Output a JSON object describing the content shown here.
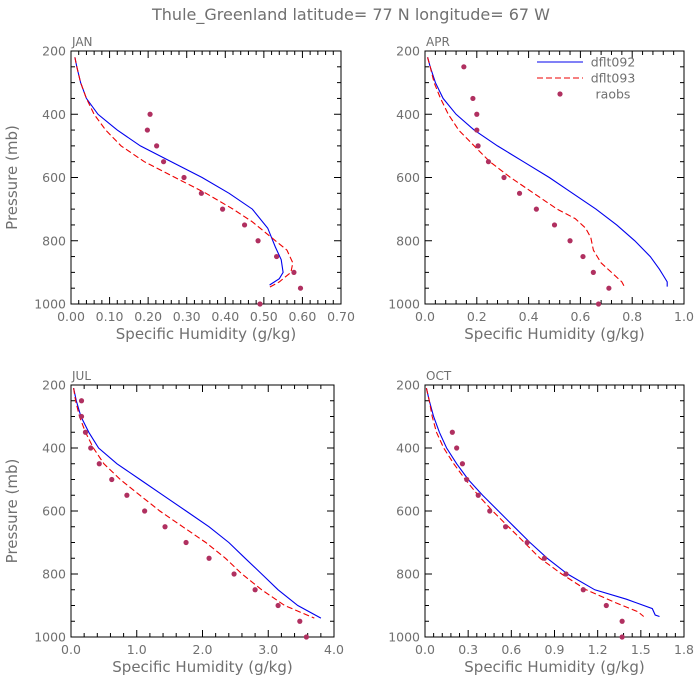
{
  "title": "Thule_Greenland  latitude= 77 N longitude= 67 W",
  "chart_data": [
    {
      "type": "line",
      "panel": "JAN",
      "xlabel": "Specific Humidity (g/kg)",
      "ylabel": "Pressure (mb)",
      "xlim": [
        0,
        0.7
      ],
      "ylim": [
        1000,
        200
      ],
      "xticks": [
        0.0,
        0.1,
        0.2,
        0.3,
        0.4,
        0.5,
        0.6,
        0.7
      ],
      "xtick_labels": [
        "0.00",
        "0.10",
        "0.20",
        "0.30",
        "0.40",
        "0.50",
        "0.60",
        "0.70"
      ],
      "yticks": [
        200,
        400,
        600,
        800,
        1000
      ],
      "ytick_labels": [
        "200",
        "400",
        "600",
        "800",
        "1000"
      ],
      "series": [
        {
          "name": "dflt092",
          "style": "solid",
          "color": "#0000ee",
          "points": [
            [
              0.01,
              220
            ],
            [
              0.015,
              250
            ],
            [
              0.025,
              300
            ],
            [
              0.04,
              350
            ],
            [
              0.07,
              400
            ],
            [
              0.12,
              450
            ],
            [
              0.18,
              500
            ],
            [
              0.26,
              550
            ],
            [
              0.34,
              600
            ],
            [
              0.41,
              650
            ],
            [
              0.47,
              700
            ],
            [
              0.51,
              760
            ],
            [
              0.53,
              820
            ],
            [
              0.545,
              860
            ],
            [
              0.55,
              900
            ],
            [
              0.54,
              920
            ],
            [
              0.515,
              940
            ]
          ]
        },
        {
          "name": "dflt093",
          "style": "dashed",
          "color": "#ee0000",
          "points": [
            [
              0.01,
              220
            ],
            [
              0.015,
              250
            ],
            [
              0.025,
              300
            ],
            [
              0.04,
              350
            ],
            [
              0.06,
              400
            ],
            [
              0.09,
              450
            ],
            [
              0.13,
              500
            ],
            [
              0.19,
              550
            ],
            [
              0.27,
              600
            ],
            [
              0.35,
              650
            ],
            [
              0.42,
              700
            ],
            [
              0.47,
              740
            ],
            [
              0.52,
              790
            ],
            [
              0.56,
              830
            ],
            [
              0.575,
              870
            ],
            [
              0.57,
              900
            ],
            [
              0.54,
              930
            ],
            [
              0.51,
              950
            ]
          ]
        },
        {
          "name": "raobs",
          "style": "markers",
          "color": "#b03060",
          "points": [
            [
              0.205,
              400
            ],
            [
              0.198,
              450
            ],
            [
              0.222,
              500
            ],
            [
              0.24,
              550
            ],
            [
              0.293,
              600
            ],
            [
              0.338,
              650
            ],
            [
              0.393,
              700
            ],
            [
              0.45,
              750
            ],
            [
              0.485,
              800
            ],
            [
              0.533,
              850
            ],
            [
              0.578,
              900
            ],
            [
              0.595,
              950
            ],
            [
              0.49,
              1000
            ]
          ]
        }
      ]
    },
    {
      "type": "line",
      "panel": "APR",
      "xlabel": "Specific Humidity (g/kg)",
      "ylabel": "",
      "xlim": [
        0,
        1.0
      ],
      "ylim": [
        1000,
        200
      ],
      "xticks": [
        0.0,
        0.2,
        0.4,
        0.6,
        0.8,
        1.0
      ],
      "xtick_labels": [
        "0.0",
        "0.2",
        "0.4",
        "0.6",
        "0.8",
        "1.0"
      ],
      "yticks": [
        200,
        400,
        600,
        800,
        1000
      ],
      "ytick_labels": [
        "200",
        "400",
        "600",
        "800",
        "1000"
      ],
      "legend": {
        "position": "top-right",
        "entries": [
          "dflt092",
          "dflt093",
          "raobs"
        ]
      },
      "series": [
        {
          "name": "dflt092",
          "style": "solid",
          "color": "#0000ee",
          "points": [
            [
              0.01,
              220
            ],
            [
              0.02,
              250
            ],
            [
              0.04,
              300
            ],
            [
              0.07,
              350
            ],
            [
              0.12,
              400
            ],
            [
              0.19,
              450
            ],
            [
              0.28,
              500
            ],
            [
              0.38,
              550
            ],
            [
              0.48,
              600
            ],
            [
              0.57,
              650
            ],
            [
              0.66,
              700
            ],
            [
              0.74,
              750
            ],
            [
              0.81,
              800
            ],
            [
              0.87,
              850
            ],
            [
              0.905,
              890
            ],
            [
              0.92,
              910
            ],
            [
              0.935,
              930
            ],
            [
              0.935,
              945
            ]
          ]
        },
        {
          "name": "dflt093",
          "style": "dashed",
          "color": "#ee0000",
          "points": [
            [
              0.01,
              220
            ],
            [
              0.02,
              250
            ],
            [
              0.035,
              300
            ],
            [
              0.06,
              350
            ],
            [
              0.09,
              400
            ],
            [
              0.13,
              450
            ],
            [
              0.19,
              500
            ],
            [
              0.25,
              550
            ],
            [
              0.33,
              600
            ],
            [
              0.42,
              650
            ],
            [
              0.51,
              700
            ],
            [
              0.58,
              730
            ],
            [
              0.62,
              760
            ],
            [
              0.64,
              790
            ],
            [
              0.65,
              830
            ],
            [
              0.68,
              870
            ],
            [
              0.72,
              900
            ],
            [
              0.76,
              930
            ],
            [
              0.77,
              945
            ]
          ]
        },
        {
          "name": "raobs",
          "style": "markers",
          "color": "#b03060",
          "points": [
            [
              0.15,
              250
            ],
            [
              0.185,
              350
            ],
            [
              0.2,
              400
            ],
            [
              0.2,
              450
            ],
            [
              0.205,
              500
            ],
            [
              0.245,
              550
            ],
            [
              0.305,
              600
            ],
            [
              0.365,
              650
            ],
            [
              0.43,
              700
            ],
            [
              0.5,
              750
            ],
            [
              0.56,
              800
            ],
            [
              0.61,
              850
            ],
            [
              0.65,
              900
            ],
            [
              0.71,
              950
            ],
            [
              0.67,
              1000
            ]
          ]
        }
      ]
    },
    {
      "type": "line",
      "panel": "JUL",
      "xlabel": "Specific Humidity (g/kg)",
      "ylabel": "Pressure (mb)",
      "xlim": [
        0,
        4.0
      ],
      "ylim": [
        1000,
        200
      ],
      "xticks": [
        0.0,
        1.0,
        2.0,
        3.0,
        4.0
      ],
      "xtick_labels": [
        "0.0",
        "1.0",
        "2.0",
        "3.0",
        "4.0"
      ],
      "yticks": [
        200,
        400,
        600,
        800,
        1000
      ],
      "ytick_labels": [
        "200",
        "400",
        "600",
        "800",
        "1000"
      ],
      "series": [
        {
          "name": "dflt092",
          "style": "solid",
          "color": "#0000ee",
          "points": [
            [
              0.04,
              210
            ],
            [
              0.08,
              250
            ],
            [
              0.15,
              300
            ],
            [
              0.27,
              350
            ],
            [
              0.42,
              400
            ],
            [
              0.7,
              450
            ],
            [
              1.05,
              500
            ],
            [
              1.4,
              550
            ],
            [
              1.75,
              600
            ],
            [
              2.1,
              650
            ],
            [
              2.4,
              700
            ],
            [
              2.65,
              750
            ],
            [
              2.9,
              800
            ],
            [
              3.15,
              850
            ],
            [
              3.45,
              900
            ],
            [
              3.8,
              940
            ]
          ]
        },
        {
          "name": "dflt093",
          "style": "dashed",
          "color": "#ee0000",
          "points": [
            [
              0.04,
              210
            ],
            [
              0.07,
              250
            ],
            [
              0.13,
              300
            ],
            [
              0.22,
              350
            ],
            [
              0.34,
              400
            ],
            [
              0.5,
              450
            ],
            [
              0.75,
              500
            ],
            [
              1.05,
              550
            ],
            [
              1.35,
              600
            ],
            [
              1.7,
              650
            ],
            [
              2.05,
              700
            ],
            [
              2.35,
              750
            ],
            [
              2.6,
              800
            ],
            [
              2.9,
              850
            ],
            [
              3.25,
              900
            ],
            [
              3.7,
              940
            ]
          ]
        },
        {
          "name": "raobs",
          "style": "markers",
          "color": "#b03060",
          "points": [
            [
              0.16,
              250
            ],
            [
              0.16,
              300
            ],
            [
              0.22,
              350
            ],
            [
              0.3,
              400
            ],
            [
              0.43,
              450
            ],
            [
              0.62,
              500
            ],
            [
              0.85,
              550
            ],
            [
              1.12,
              600
            ],
            [
              1.43,
              650
            ],
            [
              1.75,
              700
            ],
            [
              2.1,
              750
            ],
            [
              2.48,
              800
            ],
            [
              2.8,
              850
            ],
            [
              3.15,
              900
            ],
            [
              3.48,
              950
            ],
            [
              3.58,
              1000
            ]
          ]
        }
      ]
    },
    {
      "type": "line",
      "panel": "OCT",
      "xlabel": "Specific Humidity (g/kg)",
      "ylabel": "",
      "xlim": [
        0,
        1.8
      ],
      "ylim": [
        1000,
        200
      ],
      "xticks": [
        0.0,
        0.3,
        0.6,
        0.9,
        1.2,
        1.5,
        1.8
      ],
      "xtick_labels": [
        "0.0",
        "0.3",
        "0.6",
        "0.9",
        "1.2",
        "1.5",
        "1.8"
      ],
      "yticks": [
        200,
        400,
        600,
        800,
        1000
      ],
      "ytick_labels": [
        "200",
        "400",
        "600",
        "800",
        "1000"
      ],
      "series": [
        {
          "name": "dflt092",
          "style": "solid",
          "color": "#0000ee",
          "points": [
            [
              0.01,
              210
            ],
            [
              0.03,
              250
            ],
            [
              0.06,
              300
            ],
            [
              0.1,
              350
            ],
            [
              0.15,
              400
            ],
            [
              0.22,
              450
            ],
            [
              0.3,
              500
            ],
            [
              0.4,
              550
            ],
            [
              0.51,
              600
            ],
            [
              0.62,
              650
            ],
            [
              0.73,
              700
            ],
            [
              0.85,
              750
            ],
            [
              0.99,
              800
            ],
            [
              1.18,
              850
            ],
            [
              1.4,
              880
            ],
            [
              1.58,
              910
            ],
            [
              1.6,
              930
            ],
            [
              1.63,
              935
            ]
          ]
        },
        {
          "name": "dflt093",
          "style": "dashed",
          "color": "#ee0000",
          "points": [
            [
              0.01,
              210
            ],
            [
              0.03,
              250
            ],
            [
              0.05,
              300
            ],
            [
              0.08,
              350
            ],
            [
              0.13,
              400
            ],
            [
              0.2,
              450
            ],
            [
              0.28,
              500
            ],
            [
              0.37,
              550
            ],
            [
              0.47,
              600
            ],
            [
              0.58,
              650
            ],
            [
              0.69,
              700
            ],
            [
              0.8,
              750
            ],
            [
              0.95,
              800
            ],
            [
              1.12,
              850
            ],
            [
              1.32,
              890
            ],
            [
              1.48,
              920
            ],
            [
              1.52,
              935
            ]
          ]
        },
        {
          "name": "raobs",
          "style": "markers",
          "color": "#b03060",
          "points": [
            [
              0.19,
              350
            ],
            [
              0.22,
              400
            ],
            [
              0.26,
              450
            ],
            [
              0.29,
              500
            ],
            [
              0.37,
              550
            ],
            [
              0.45,
              600
            ],
            [
              0.56,
              650
            ],
            [
              0.71,
              700
            ],
            [
              0.83,
              750
            ],
            [
              0.98,
              800
            ],
            [
              1.1,
              850
            ],
            [
              1.26,
              900
            ],
            [
              1.37,
              950
            ],
            [
              1.37,
              1000
            ]
          ]
        }
      ]
    }
  ]
}
